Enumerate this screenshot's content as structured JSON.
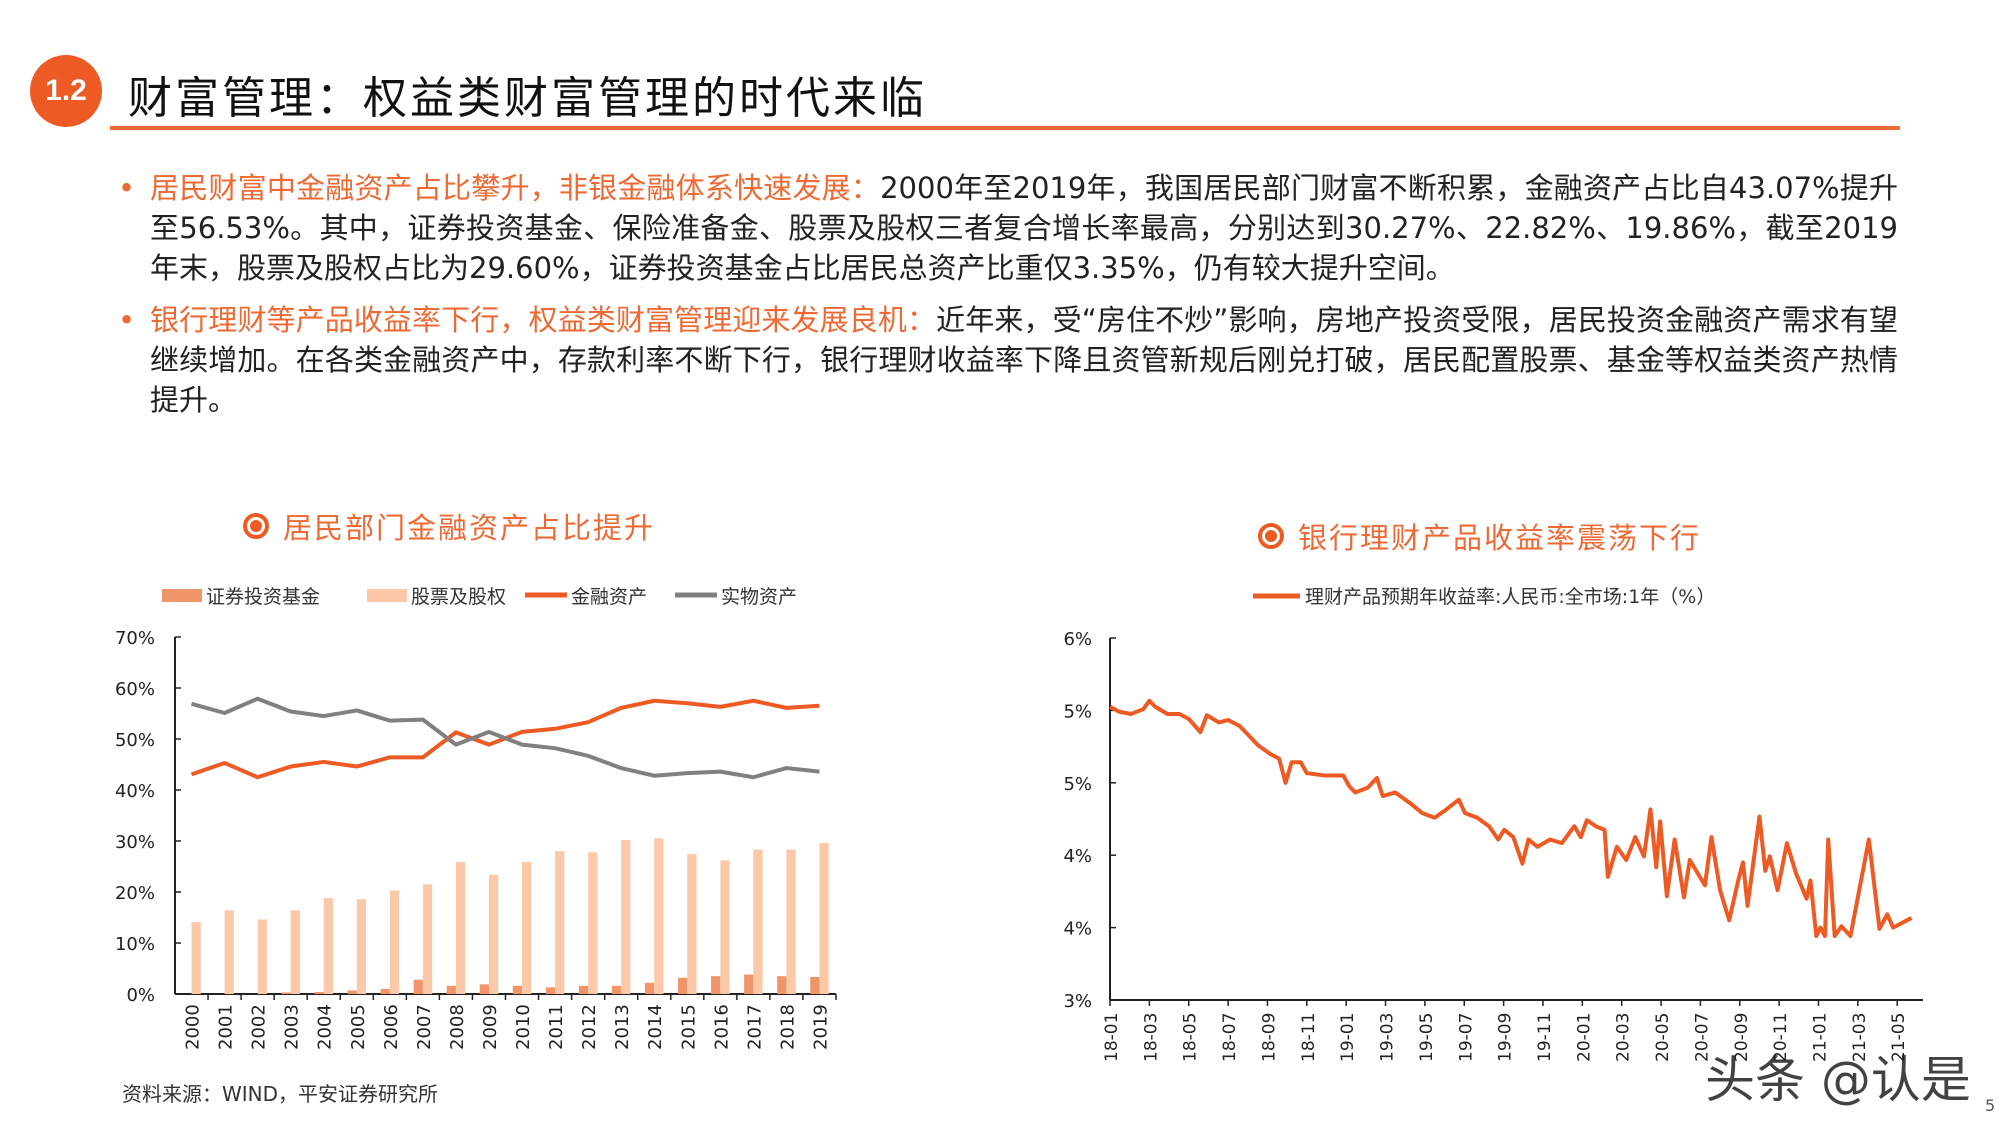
{
  "header": {
    "badge": "1.2",
    "title": "财富管理：权益类财富管理的时代来临"
  },
  "bullets": [
    {
      "lead": "居民财富中金融资产占比攀升，非银金融体系快速发展：",
      "text": "2000年至2019年，我国居民部门财富不断积累，金融资产占比自43.07%提升至56.53%。其中，证券投资基金、保险准备金、股票及股权三者复合增长率最高，分别达到30.27%、22.82%、19.86%，截至2019年末，股票及股权占比为29.60%，证券投资基金占比居民总资产比重仅3.35%，仍有较大提升空间。"
    },
    {
      "lead": "银行理财等产品收益率下行，权益类财富管理迎来发展良机：",
      "text": "近年来，受“房住不炒”影响，房地产投资受限，居民投资金融资产需求有望继续增加。在各类金融资产中，存款利率不断下行，银行理财收益率下降且资管新规后刚兑打破，居民配置股票、基金等权益类资产热情提升。"
    }
  ],
  "source": "资料来源：WIND，平安证券研究所",
  "watermark": "头条 @认是",
  "page_number": "5",
  "colors": {
    "accent": "#ee5a24",
    "fund": "#f0946a",
    "stock": "#fbc9a8",
    "financial": "#ee5a24",
    "physical": "#808080"
  },
  "chart_data": [
    {
      "type": "bar+line",
      "title": "居民部门金融资产占比提升",
      "legend_position": "top",
      "categories": [
        "2000",
        "2001",
        "2002",
        "2003",
        "2004",
        "2005",
        "2006",
        "2007",
        "2008",
        "2009",
        "2010",
        "2011",
        "2012",
        "2013",
        "2014",
        "2015",
        "2016",
        "2017",
        "2018",
        "2019"
      ],
      "ylim": [
        0,
        70
      ],
      "yticks": [
        "0%",
        "10%",
        "20%",
        "30%",
        "40%",
        "50%",
        "60%",
        "70%"
      ],
      "grid": false,
      "series": [
        {
          "name": "证券投资基金",
          "kind": "bar",
          "values": [
            0,
            0,
            0,
            0.3,
            0.4,
            0.7,
            1.0,
            2.8,
            1.6,
            1.9,
            1.6,
            1.3,
            1.6,
            1.6,
            2.2,
            3.2,
            3.5,
            3.8,
            3.5,
            3.35
          ]
        },
        {
          "name": "股票及股权",
          "kind": "bar",
          "values": [
            14.1,
            16.4,
            14.6,
            16.4,
            18.8,
            18.6,
            20.3,
            21.5,
            25.9,
            23.4,
            25.9,
            28.0,
            27.8,
            30.2,
            30.5,
            27.4,
            26.2,
            28.3,
            28.3,
            29.6
          ]
        },
        {
          "name": "金融资产",
          "kind": "line",
          "values": [
            43.07,
            45.3,
            42.5,
            44.6,
            45.5,
            44.6,
            46.4,
            46.4,
            51.3,
            48.9,
            51.4,
            52.0,
            53.3,
            56.1,
            57.5,
            57.0,
            56.3,
            57.5,
            56.1,
            56.53
          ]
        },
        {
          "name": "实物资产",
          "kind": "line",
          "values": [
            56.9,
            55.1,
            57.9,
            55.4,
            54.5,
            55.6,
            53.6,
            53.8,
            48.9,
            51.4,
            48.9,
            48.2,
            46.7,
            44.3,
            42.8,
            43.3,
            43.6,
            42.5,
            44.3,
            43.6
          ]
        }
      ]
    },
    {
      "type": "line",
      "title": "银行理财产品收益率震荡下行",
      "legend_position": "top",
      "ylim": [
        3.0,
        6.0
      ],
      "yticks": [
        "3%",
        "4%",
        "4%",
        "5%",
        "5%",
        "6%"
      ],
      "xticks": [
        "18-01",
        "18-03",
        "18-05",
        "18-07",
        "18-09",
        "18-11",
        "19-01",
        "19-03",
        "19-05",
        "19-07",
        "19-09",
        "19-11",
        "20-01",
        "20-03",
        "20-05",
        "20-07",
        "20-09",
        "20-11",
        "21-01",
        "21-03",
        "21-05"
      ],
      "grid": false,
      "series": [
        {
          "name": "理财产品预期年收益率:人民币:全市场:1年（%）",
          "points": [
            [
              "2018-01-01",
              5.43
            ],
            [
              "2018-01-15",
              5.39
            ],
            [
              "2018-02-03",
              5.37
            ],
            [
              "2018-02-22",
              5.41
            ],
            [
              "2018-03-01",
              5.48
            ],
            [
              "2018-03-10",
              5.43
            ],
            [
              "2018-03-29",
              5.37
            ],
            [
              "2018-04-17",
              5.37
            ],
            [
              "2018-05-01",
              5.33
            ],
            [
              "2018-05-19",
              5.22
            ],
            [
              "2018-05-29",
              5.36
            ],
            [
              "2018-06-17",
              5.3
            ],
            [
              "2018-07-01",
              5.32
            ],
            [
              "2018-07-19",
              5.27
            ],
            [
              "2018-08-03",
              5.19
            ],
            [
              "2018-08-17",
              5.11
            ],
            [
              "2018-09-05",
              5.04
            ],
            [
              "2018-09-19",
              5.0
            ],
            [
              "2018-09-29",
              4.8
            ],
            [
              "2018-10-08",
              4.97
            ],
            [
              "2018-10-22",
              4.97
            ],
            [
              "2018-11-01",
              4.88
            ],
            [
              "2018-11-29",
              4.86
            ],
            [
              "2018-12-27",
              4.86
            ],
            [
              "2019-01-06",
              4.77
            ],
            [
              "2019-01-15",
              4.72
            ],
            [
              "2019-02-04",
              4.76
            ],
            [
              "2019-02-18",
              4.84
            ],
            [
              "2019-02-27",
              4.69
            ],
            [
              "2019-03-16",
              4.72
            ],
            [
              "2019-04-09",
              4.63
            ],
            [
              "2019-04-27",
              4.55
            ],
            [
              "2019-05-16",
              4.51
            ],
            [
              "2019-06-04",
              4.58
            ],
            [
              "2019-06-23",
              4.66
            ],
            [
              "2019-07-02",
              4.55
            ],
            [
              "2019-07-21",
              4.51
            ],
            [
              "2019-08-09",
              4.44
            ],
            [
              "2019-08-23",
              4.33
            ],
            [
              "2019-09-02",
              4.41
            ],
            [
              "2019-09-16",
              4.35
            ],
            [
              "2019-09-30",
              4.13
            ],
            [
              "2019-10-09",
              4.33
            ],
            [
              "2019-10-23",
              4.27
            ],
            [
              "2019-11-12",
              4.33
            ],
            [
              "2019-11-30",
              4.3
            ],
            [
              "2019-12-19",
              4.44
            ],
            [
              "2019-12-29",
              4.35
            ],
            [
              "2020-01-08",
              4.49
            ],
            [
              "2020-01-22",
              4.44
            ],
            [
              "2020-02-05",
              4.41
            ],
            [
              "2020-02-10",
              4.02
            ],
            [
              "2020-02-24",
              4.27
            ],
            [
              "2020-03-08",
              4.16
            ],
            [
              "2020-03-22",
              4.35
            ],
            [
              "2020-04-05",
              4.19
            ],
            [
              "2020-04-15",
              4.58
            ],
            [
              "2020-04-24",
              4.1
            ],
            [
              "2020-04-30",
              4.48
            ],
            [
              "2020-05-10",
              3.86
            ],
            [
              "2020-05-22",
              4.33
            ],
            [
              "2020-06-06",
              3.85
            ],
            [
              "2020-06-15",
              4.16
            ],
            [
              "2020-07-08",
              3.95
            ],
            [
              "2020-07-18",
              4.35
            ],
            [
              "2020-08-01",
              3.91
            ],
            [
              "2020-08-15",
              3.66
            ],
            [
              "2020-08-29",
              3.99
            ],
            [
              "2020-09-06",
              4.14
            ],
            [
              "2020-09-13",
              3.78
            ],
            [
              "2020-10-01",
              4.52
            ],
            [
              "2020-10-10",
              4.07
            ],
            [
              "2020-10-17",
              4.19
            ],
            [
              "2020-10-29",
              3.91
            ],
            [
              "2020-11-13",
              4.3
            ],
            [
              "2020-11-27",
              4.05
            ],
            [
              "2020-12-13",
              3.84
            ],
            [
              "2020-12-19",
              3.99
            ],
            [
              "2020-12-28",
              3.53
            ],
            [
              "2021-01-04",
              3.6
            ],
            [
              "2021-01-11",
              3.53
            ],
            [
              "2021-01-16",
              4.33
            ],
            [
              "2021-01-26",
              3.53
            ],
            [
              "2021-02-06",
              3.61
            ],
            [
              "2021-02-20",
              3.53
            ],
            [
              "2021-03-18",
              4.33
            ],
            [
              "2021-04-04",
              3.59
            ],
            [
              "2021-04-16",
              3.71
            ],
            [
              "2021-04-25",
              3.6
            ],
            [
              "2021-05-23",
              3.68
            ]
          ]
        }
      ]
    }
  ]
}
